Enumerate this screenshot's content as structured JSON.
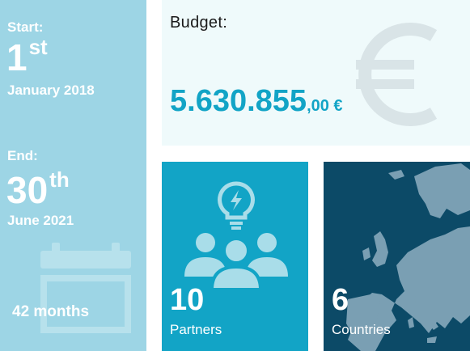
{
  "dates": {
    "start_label": "Start:",
    "start_day": "1",
    "start_suffix": "st",
    "start_date": "January 2018",
    "end_label": "End:",
    "end_day": "30",
    "end_suffix": "th",
    "end_date": "June 2021",
    "duration": "42 months"
  },
  "budget": {
    "title": "Budget:",
    "amount_main": "5.630.855",
    "amount_decimals": ",00 €"
  },
  "partners": {
    "count": "10",
    "label": "Partners"
  },
  "countries": {
    "count": "6",
    "label": "Countries"
  },
  "colors": {
    "dates_bg": "#9dd5e5",
    "budget_bg": "#effafb",
    "accent": "#12a4c6",
    "partners_bg": "#12a4c6",
    "countries_bg": "#0c4a67",
    "map_land": "#7a9fb3"
  },
  "icons": [
    "calendar-icon",
    "euro-icon",
    "lightbulb-icon",
    "people-group-icon",
    "europe-map-icon"
  ]
}
